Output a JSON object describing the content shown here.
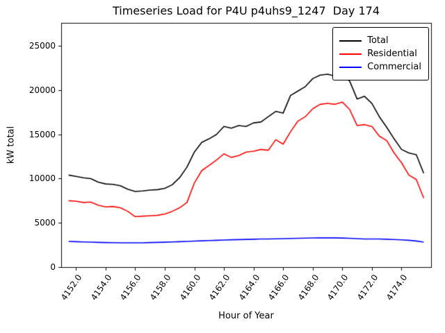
{
  "chart_data": {
    "type": "line",
    "title": "Timeseries Load for P4U p4uhs9_1247  Day 174",
    "xlabel": "Hour of Year",
    "ylabel": "kW total",
    "grid": false,
    "legend_position": "upper right",
    "xlim": [
      4151.0,
      4176.0
    ],
    "ylim": [
      0,
      27600
    ],
    "x_ticks": [
      4152,
      4154,
      4156,
      4158,
      4160,
      4162,
      4164,
      4166,
      4168,
      4170,
      4172,
      4174
    ],
    "x_tick_labels": [
      "4152.0",
      "4154.0",
      "4156.0",
      "4158.0",
      "4160.0",
      "4162.0",
      "4164.0",
      "4166.0",
      "4168.0",
      "4170.0",
      "4172.0",
      "4174.0"
    ],
    "y_ticks": [
      0,
      5000,
      10000,
      15000,
      20000,
      25000
    ],
    "y_tick_labels": [
      "0",
      "5000",
      "10000",
      "15000",
      "20000",
      "25000"
    ],
    "x": [
      4151.5,
      4152.0,
      4152.5,
      4153.0,
      4153.5,
      4154.0,
      4154.5,
      4155.0,
      4155.5,
      4156.0,
      4156.5,
      4157.0,
      4157.5,
      4158.0,
      4158.5,
      4159.0,
      4159.5,
      4160.0,
      4160.5,
      4161.0,
      4161.5,
      4162.0,
      4162.5,
      4163.0,
      4163.5,
      4164.0,
      4164.5,
      4165.0,
      4165.5,
      4166.0,
      4166.5,
      4167.0,
      4167.5,
      4168.0,
      4168.5,
      4169.0,
      4169.5,
      4170.0,
      4170.5,
      4171.0,
      4171.5,
      4172.0,
      4172.5,
      4173.0,
      4173.5,
      4174.0,
      4174.5,
      4175.0,
      4175.5
    ],
    "series": [
      {
        "name": "Total",
        "color": "#000000",
        "values": [
          10400,
          10250,
          10100,
          10000,
          9600,
          9400,
          9350,
          9200,
          8800,
          8550,
          8600,
          8700,
          8750,
          8900,
          9300,
          10100,
          11300,
          13000,
          14100,
          14500,
          15000,
          15900,
          15700,
          16000,
          15900,
          16300,
          16400,
          17000,
          17600,
          17400,
          19400,
          19900,
          20400,
          21300,
          21700,
          21800,
          21600,
          21850,
          21000,
          19000,
          19300,
          18500,
          17000,
          15800,
          14500,
          13300,
          12900,
          12700,
          10600
        ]
      },
      {
        "name": "Residential",
        "color": "#ff0000",
        "values": [
          7500,
          7450,
          7300,
          7350,
          7000,
          6800,
          6850,
          6700,
          6300,
          5700,
          5750,
          5800,
          5850,
          6000,
          6300,
          6700,
          7300,
          9500,
          10900,
          11500,
          12100,
          12800,
          12400,
          12600,
          13000,
          13100,
          13300,
          13200,
          14400,
          13900,
          15300,
          16500,
          17000,
          17900,
          18400,
          18500,
          18400,
          18650,
          17800,
          16000,
          16100,
          15900,
          14800,
          14300,
          12900,
          11800,
          10400,
          9900,
          7800
        ]
      },
      {
        "name": "Commercial",
        "color": "#0000ff",
        "values": [
          2900,
          2870,
          2840,
          2820,
          2790,
          2770,
          2760,
          2750,
          2740,
          2740,
          2750,
          2770,
          2790,
          2810,
          2840,
          2870,
          2900,
          2940,
          2970,
          3000,
          3030,
          3060,
          3090,
          3110,
          3130,
          3150,
          3170,
          3180,
          3200,
          3210,
          3230,
          3250,
          3270,
          3290,
          3300,
          3310,
          3300,
          3280,
          3250,
          3220,
          3180,
          3170,
          3170,
          3150,
          3120,
          3080,
          3030,
          2950,
          2820
        ]
      }
    ]
  }
}
